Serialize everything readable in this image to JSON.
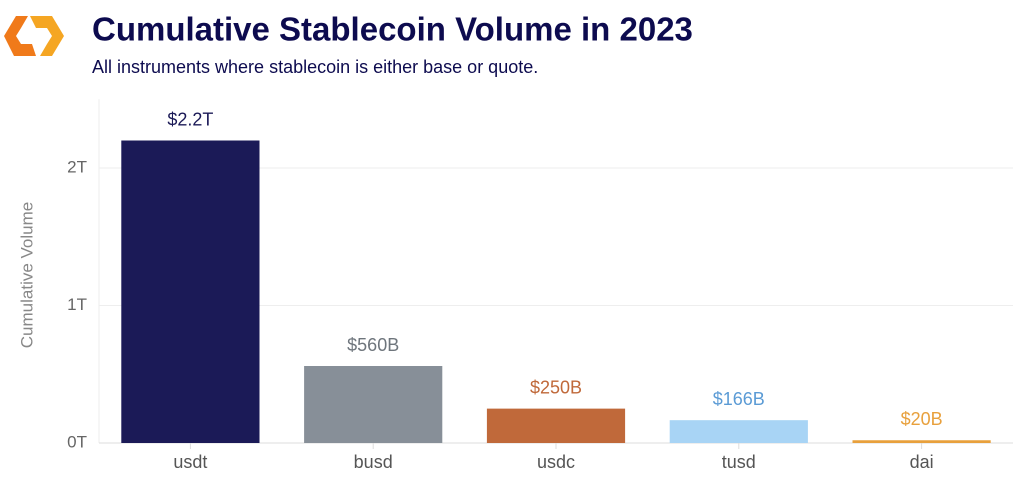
{
  "chart_data": {
    "type": "bar",
    "title": "Cumulative Stablecoin Volume in 2023",
    "subtitle": "All instruments where stablecoin is either base or quote.",
    "y_label": "Cumulative Volume",
    "categories": [
      "usdt",
      "busd",
      "usdc",
      "tusd",
      "dai"
    ],
    "values": [
      2.2,
      0.56,
      0.25,
      0.166,
      0.02
    ],
    "value_labels": [
      "$2.2T",
      "$560B",
      "$250B",
      "$166B",
      "$20B"
    ],
    "colors": [
      "#1b1a57",
      "#878f98",
      "#c0693a",
      "#a8d4f5",
      "#e8a03c"
    ],
    "value_label_colors": [
      "#1b1a57",
      "#6e757c",
      "#c0693a",
      "#5b9bd5",
      "#e8a03c"
    ],
    "ylim": [
      0,
      2.5
    ],
    "yticks": [
      {
        "value": 0,
        "label": "0T"
      },
      {
        "value": 1,
        "label": "1T"
      },
      {
        "value": 2,
        "label": "2T"
      }
    ],
    "grid": true
  }
}
